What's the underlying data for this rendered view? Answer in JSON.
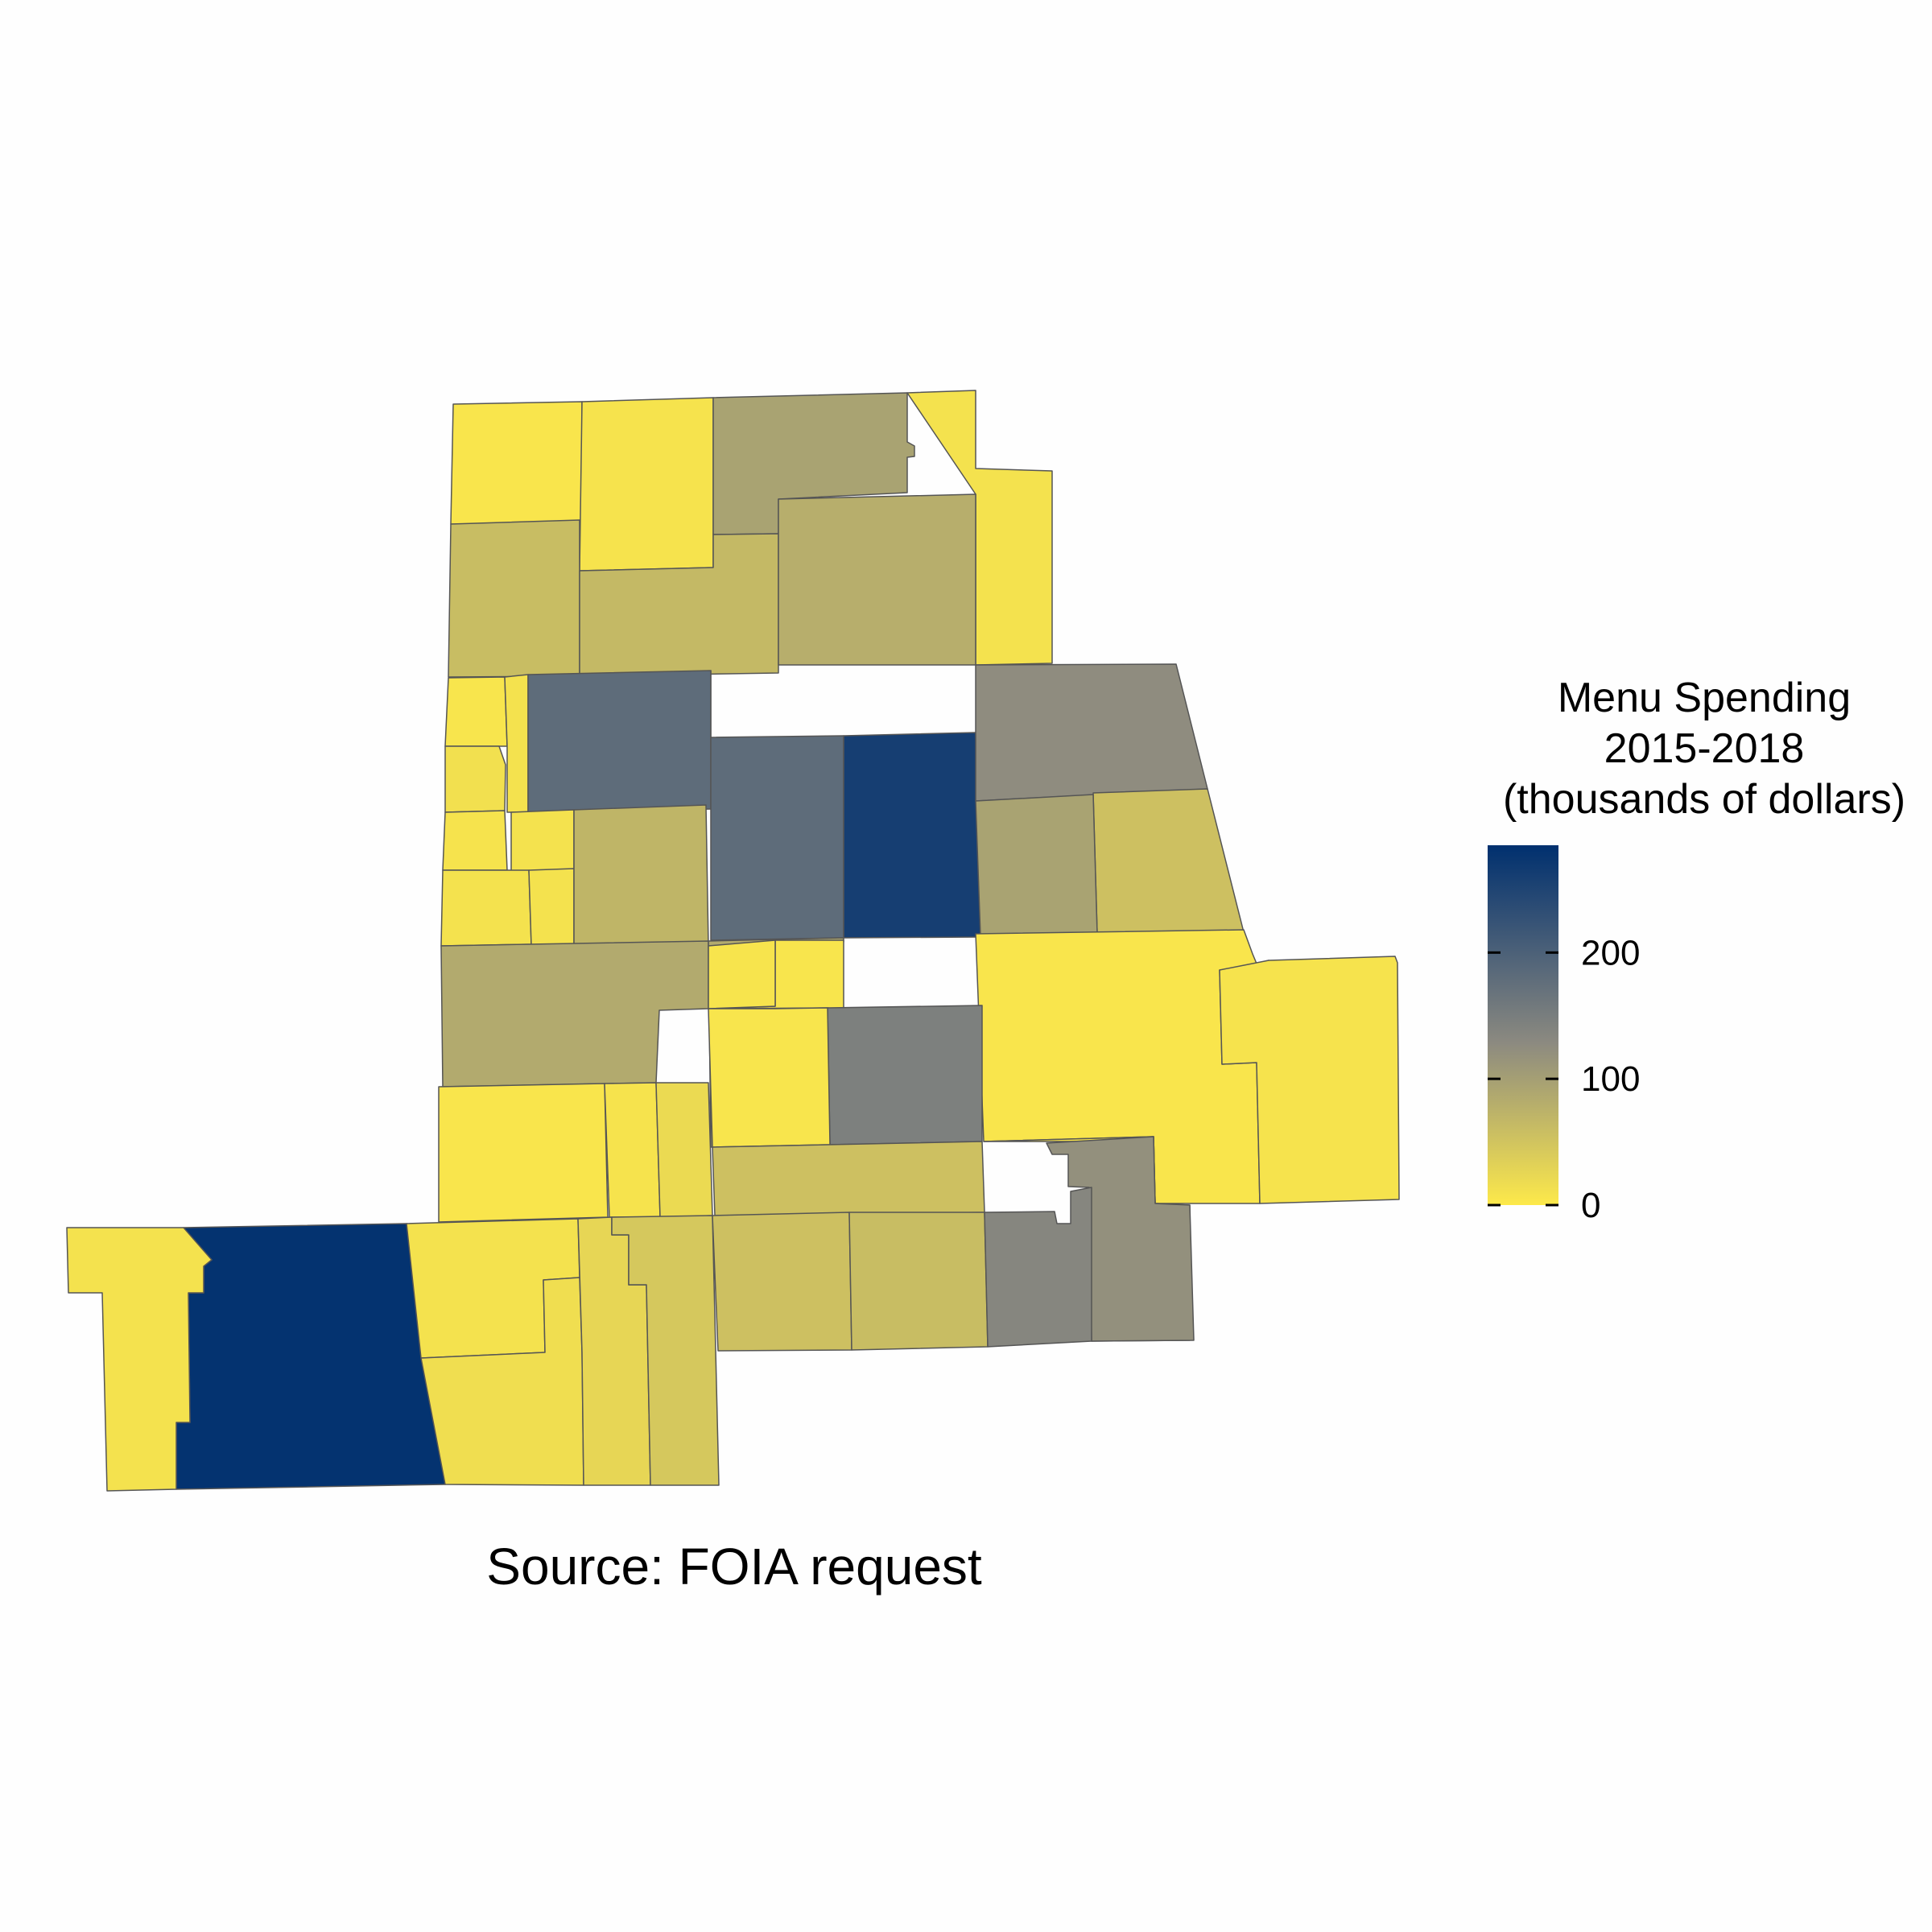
{
  "legend": {
    "title_lines": [
      "Menu Spending",
      "2015-2018",
      "(thousands of dollars)"
    ],
    "ticks": [
      {
        "value": 0,
        "label": "0"
      },
      {
        "value": 100,
        "label": "100"
      },
      {
        "value": 200,
        "label": "200"
      }
    ],
    "range": [
      0,
      285
    ],
    "colors": {
      "low": "#fde94a",
      "mid": "#8c8a80",
      "high": "#00306f"
    }
  },
  "caption": "Source: FOIA request",
  "regions_values": [
    5,
    8,
    95,
    10,
    60,
    65,
    80,
    6,
    10,
    180,
    12,
    8,
    180,
    260,
    125,
    55,
    95,
    5,
    8,
    10,
    10,
    10,
    70,
    85,
    85,
    6,
    7,
    145,
    6,
    5,
    55,
    120,
    5,
    8,
    20,
    280,
    10,
    10,
    15,
    25,
    45,
    55,
    60,
    135
  ]
}
